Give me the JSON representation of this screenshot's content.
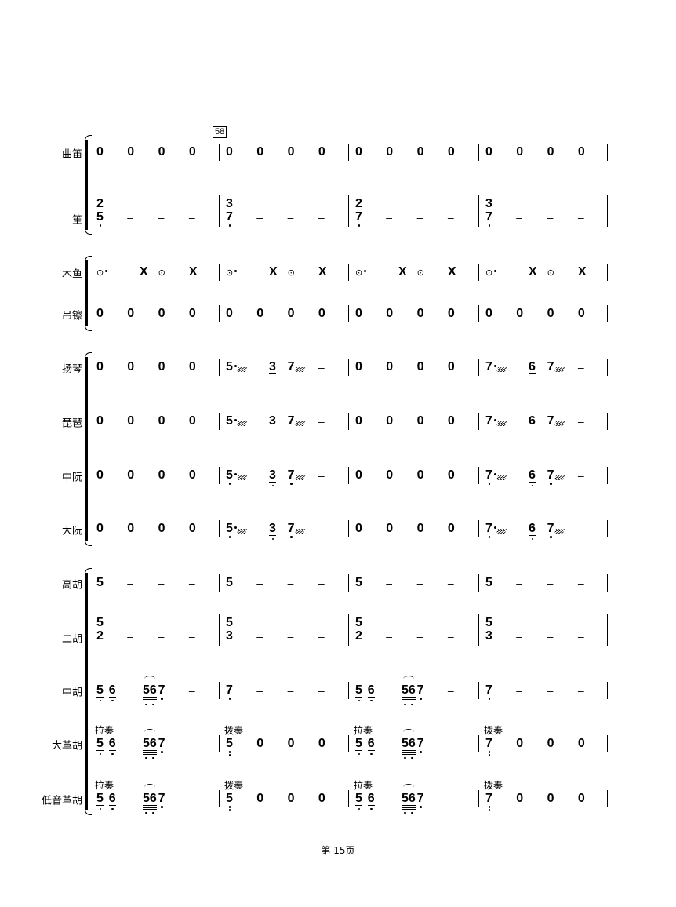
{
  "rehearsal_mark": "58",
  "footer": "第 15页",
  "instruments": [
    {
      "name": "曲笛",
      "measures": [
        [
          {
            "n": "0",
            "b": 0
          },
          {
            "n": "0",
            "b": 1
          },
          {
            "n": "0",
            "b": 2
          },
          {
            "n": "0",
            "b": 3
          }
        ],
        [
          {
            "n": "0",
            "b": 0
          },
          {
            "n": "0",
            "b": 1
          },
          {
            "n": "0",
            "b": 2
          },
          {
            "n": "0",
            "b": 3
          }
        ],
        [
          {
            "n": "0",
            "b": 0
          },
          {
            "n": "0",
            "b": 1
          },
          {
            "n": "0",
            "b": 2
          },
          {
            "n": "0",
            "b": 3
          }
        ],
        [
          {
            "n": "0",
            "b": 0
          },
          {
            "n": "0",
            "b": 1
          },
          {
            "n": "0",
            "b": 2
          },
          {
            "n": "0",
            "b": 3
          }
        ]
      ]
    },
    {
      "name": "笙",
      "measures": [
        [
          {
            "n": "5",
            "top": "2",
            "low": 1,
            "b": 0
          },
          {
            "n": "–",
            "b": 1
          },
          {
            "n": "–",
            "b": 2
          },
          {
            "n": "–",
            "b": 3
          }
        ],
        [
          {
            "n": "7",
            "top": "3",
            "low": 1,
            "b": 0
          },
          {
            "n": "–",
            "b": 1
          },
          {
            "n": "–",
            "b": 2
          },
          {
            "n": "–",
            "b": 3
          }
        ],
        [
          {
            "n": "7",
            "top": "2",
            "low": 1,
            "b": 0
          },
          {
            "n": "–",
            "b": 1
          },
          {
            "n": "–",
            "b": 2
          },
          {
            "n": "–",
            "b": 3
          }
        ],
        [
          {
            "n": "7",
            "top": "3",
            "low": 1,
            "b": 0
          },
          {
            "n": "–",
            "b": 1
          },
          {
            "n": "–",
            "b": 2
          },
          {
            "n": "–",
            "b": 3
          }
        ]
      ]
    },
    {
      "name": "木鱼",
      "measures": [
        [
          {
            "n": "⊙",
            "sym": true,
            "aug": true,
            "b": 0
          },
          {
            "n": "X",
            "ul": 1,
            "b": 1.4
          },
          {
            "n": "⊙",
            "sym": true,
            "b": 2
          },
          {
            "n": "X",
            "b": 3
          }
        ],
        [
          {
            "n": "⊙",
            "sym": true,
            "aug": true,
            "b": 0
          },
          {
            "n": "X",
            "ul": 1,
            "b": 1.4
          },
          {
            "n": "⊙",
            "sym": true,
            "b": 2
          },
          {
            "n": "X",
            "b": 3
          }
        ],
        [
          {
            "n": "⊙",
            "sym": true,
            "aug": true,
            "b": 0
          },
          {
            "n": "X",
            "ul": 1,
            "b": 1.4
          },
          {
            "n": "⊙",
            "sym": true,
            "b": 2
          },
          {
            "n": "X",
            "b": 3
          }
        ],
        [
          {
            "n": "⊙",
            "sym": true,
            "aug": true,
            "b": 0
          },
          {
            "n": "X",
            "ul": 1,
            "b": 1.4
          },
          {
            "n": "⊙",
            "sym": true,
            "b": 2
          },
          {
            "n": "X",
            "b": 3
          }
        ]
      ]
    },
    {
      "name": "吊镲",
      "measures": [
        [
          {
            "n": "0",
            "b": 0
          },
          {
            "n": "0",
            "b": 1
          },
          {
            "n": "0",
            "b": 2
          },
          {
            "n": "0",
            "b": 3
          }
        ],
        [
          {
            "n": "0",
            "b": 0
          },
          {
            "n": "0",
            "b": 1
          },
          {
            "n": "0",
            "b": 2
          },
          {
            "n": "0",
            "b": 3
          }
        ],
        [
          {
            "n": "0",
            "b": 0
          },
          {
            "n": "0",
            "b": 1
          },
          {
            "n": "0",
            "b": 2
          },
          {
            "n": "0",
            "b": 3
          }
        ],
        [
          {
            "n": "0",
            "b": 0
          },
          {
            "n": "0",
            "b": 1
          },
          {
            "n": "0",
            "b": 2
          },
          {
            "n": "0",
            "b": 3
          }
        ]
      ]
    },
    {
      "name": "扬琴",
      "measures": [
        [
          {
            "n": "0",
            "b": 0
          },
          {
            "n": "0",
            "b": 1
          },
          {
            "n": "0",
            "b": 2
          },
          {
            "n": "0",
            "b": 3
          }
        ],
        [
          {
            "n": "5",
            "aug": true,
            "trem": true,
            "b": 0
          },
          {
            "n": "3",
            "ul": 1,
            "b": 1.4
          },
          {
            "n": "7",
            "trem": true,
            "b": 2
          },
          {
            "n": "–",
            "b": 3
          }
        ],
        [
          {
            "n": "0",
            "b": 0
          },
          {
            "n": "0",
            "b": 1
          },
          {
            "n": "0",
            "b": 2
          },
          {
            "n": "0",
            "b": 3
          }
        ],
        [
          {
            "n": "7",
            "aug": true,
            "trem": true,
            "b": 0
          },
          {
            "n": "6",
            "ul": 1,
            "b": 1.4
          },
          {
            "n": "7",
            "trem": true,
            "b": 2
          },
          {
            "n": "–",
            "b": 3
          }
        ]
      ]
    },
    {
      "name": "琵琶",
      "measures": [
        [
          {
            "n": "0",
            "b": 0
          },
          {
            "n": "0",
            "b": 1
          },
          {
            "n": "0",
            "b": 2
          },
          {
            "n": "0",
            "b": 3
          }
        ],
        [
          {
            "n": "5",
            "aug": true,
            "trem": true,
            "b": 0
          },
          {
            "n": "3",
            "ul": 1,
            "b": 1.4
          },
          {
            "n": "7",
            "trem": true,
            "b": 2
          },
          {
            "n": "–",
            "b": 3
          }
        ],
        [
          {
            "n": "0",
            "b": 0
          },
          {
            "n": "0",
            "b": 1
          },
          {
            "n": "0",
            "b": 2
          },
          {
            "n": "0",
            "b": 3
          }
        ],
        [
          {
            "n": "7",
            "aug": true,
            "trem": true,
            "b": 0
          },
          {
            "n": "6",
            "ul": 1,
            "b": 1.4
          },
          {
            "n": "7",
            "trem": true,
            "b": 2
          },
          {
            "n": "–",
            "b": 3
          }
        ]
      ]
    },
    {
      "name": "中阮",
      "measures": [
        [
          {
            "n": "0",
            "b": 0
          },
          {
            "n": "0",
            "b": 1
          },
          {
            "n": "0",
            "b": 2
          },
          {
            "n": "0",
            "b": 3
          }
        ],
        [
          {
            "n": "5",
            "low": 1,
            "aug": true,
            "trem": true,
            "b": 0
          },
          {
            "n": "3",
            "ul": 1,
            "low": 1,
            "b": 1.4
          },
          {
            "n": "7",
            "low": 1,
            "trem": true,
            "b": 2
          },
          {
            "n": "–",
            "b": 3
          }
        ],
        [
          {
            "n": "0",
            "b": 0
          },
          {
            "n": "0",
            "b": 1
          },
          {
            "n": "0",
            "b": 2
          },
          {
            "n": "0",
            "b": 3
          }
        ],
        [
          {
            "n": "7",
            "low": 1,
            "aug": true,
            "trem": true,
            "b": 0
          },
          {
            "n": "6",
            "ul": 1,
            "low": 1,
            "b": 1.4
          },
          {
            "n": "7",
            "low": 1,
            "trem": true,
            "b": 2
          },
          {
            "n": "–",
            "b": 3
          }
        ]
      ]
    },
    {
      "name": "大阮",
      "measures": [
        [
          {
            "n": "0",
            "b": 0
          },
          {
            "n": "0",
            "b": 1
          },
          {
            "n": "0",
            "b": 2
          },
          {
            "n": "0",
            "b": 3
          }
        ],
        [
          {
            "n": "5",
            "low": 1,
            "aug": true,
            "trem": true,
            "b": 0
          },
          {
            "n": "3",
            "ul": 1,
            "low": 1,
            "b": 1.4
          },
          {
            "n": "7",
            "low": 1,
            "trem": true,
            "b": 2
          },
          {
            "n": "–",
            "b": 3
          }
        ],
        [
          {
            "n": "0",
            "b": 0
          },
          {
            "n": "0",
            "b": 1
          },
          {
            "n": "0",
            "b": 2
          },
          {
            "n": "0",
            "b": 3
          }
        ],
        [
          {
            "n": "7",
            "low": 1,
            "aug": true,
            "trem": true,
            "b": 0
          },
          {
            "n": "6",
            "ul": 1,
            "low": 1,
            "b": 1.4
          },
          {
            "n": "7",
            "low": 1,
            "trem": true,
            "b": 2
          },
          {
            "n": "–",
            "b": 3
          }
        ]
      ]
    },
    {
      "name": "高胡",
      "measures": [
        [
          {
            "n": "5",
            "b": 0
          },
          {
            "n": "–",
            "b": 1
          },
          {
            "n": "–",
            "b": 2
          },
          {
            "n": "–",
            "b": 3
          }
        ],
        [
          {
            "n": "5",
            "b": 0
          },
          {
            "n": "–",
            "b": 1
          },
          {
            "n": "–",
            "b": 2
          },
          {
            "n": "–",
            "b": 3
          }
        ],
        [
          {
            "n": "5",
            "b": 0
          },
          {
            "n": "–",
            "b": 1
          },
          {
            "n": "–",
            "b": 2
          },
          {
            "n": "–",
            "b": 3
          }
        ],
        [
          {
            "n": "5",
            "b": 0
          },
          {
            "n": "–",
            "b": 1
          },
          {
            "n": "–",
            "b": 2
          },
          {
            "n": "–",
            "b": 3
          }
        ]
      ]
    },
    {
      "name": "二胡",
      "measures": [
        [
          {
            "n": "2",
            "top": "5",
            "b": 0
          },
          {
            "n": "–",
            "b": 1
          },
          {
            "n": "–",
            "b": 2
          },
          {
            "n": "–",
            "b": 3
          }
        ],
        [
          {
            "n": "3",
            "top": "5",
            "b": 0
          },
          {
            "n": "–",
            "b": 1
          },
          {
            "n": "–",
            "b": 2
          },
          {
            "n": "–",
            "b": 3
          }
        ],
        [
          {
            "n": "2",
            "top": "5",
            "b": 0
          },
          {
            "n": "–",
            "b": 1
          },
          {
            "n": "–",
            "b": 2
          },
          {
            "n": "–",
            "b": 3
          }
        ],
        [
          {
            "n": "3",
            "top": "5",
            "b": 0
          },
          {
            "n": "–",
            "b": 1
          },
          {
            "n": "–",
            "b": 2
          },
          {
            "n": "–",
            "b": 3
          }
        ]
      ]
    },
    {
      "name": "中胡",
      "measures": [
        [
          {
            "n": "5",
            "ul": 1,
            "low": 1,
            "b": 0
          },
          {
            "n": "6",
            "ul": 1,
            "low": 1,
            "b": 0.4
          },
          {
            "n": "56",
            "ul": 3,
            "low": 1,
            "arc": true,
            "b": 1.5
          },
          {
            "n": "7",
            "low": 1,
            "b": 2
          },
          {
            "n": "–",
            "b": 3
          }
        ],
        [
          {
            "n": "7",
            "low": 1,
            "b": 0
          },
          {
            "n": "–",
            "b": 1
          },
          {
            "n": "–",
            "b": 2
          },
          {
            "n": "–",
            "b": 3
          }
        ],
        [
          {
            "n": "5",
            "ul": 1,
            "low": 1,
            "b": 0
          },
          {
            "n": "6",
            "ul": 1,
            "low": 1,
            "b": 0.4
          },
          {
            "n": "56",
            "ul": 3,
            "low": 1,
            "arc": true,
            "b": 1.5
          },
          {
            "n": "7",
            "low": 1,
            "b": 2
          },
          {
            "n": "–",
            "b": 3
          }
        ],
        [
          {
            "n": "7",
            "low": 1,
            "b": 0
          },
          {
            "n": "–",
            "b": 1
          },
          {
            "n": "–",
            "b": 2
          },
          {
            "n": "–",
            "b": 3
          }
        ]
      ]
    },
    {
      "name": "大革胡",
      "measures": [
        [
          {
            "label": "拉奏",
            "n": "5",
            "ul": 1,
            "low": 1,
            "b": 0
          },
          {
            "n": "6",
            "ul": 1,
            "low": 1,
            "b": 0.4
          },
          {
            "n": "56",
            "ul": 3,
            "low": 1,
            "arc": true,
            "b": 1.5
          },
          {
            "n": "7",
            "low": 1,
            "b": 2
          },
          {
            "n": "–",
            "b": 3
          }
        ],
        [
          {
            "label": "拨奏",
            "n": "5",
            "low": 2,
            "b": 0
          },
          {
            "n": "0",
            "b": 1
          },
          {
            "n": "0",
            "b": 2
          },
          {
            "n": "0",
            "b": 3
          }
        ],
        [
          {
            "label": "拉奏",
            "n": "5",
            "ul": 1,
            "low": 1,
            "b": 0
          },
          {
            "n": "6",
            "ul": 1,
            "low": 1,
            "b": 0.4
          },
          {
            "n": "56",
            "ul": 3,
            "low": 1,
            "arc": true,
            "b": 1.5
          },
          {
            "n": "7",
            "low": 1,
            "b": 2
          },
          {
            "n": "–",
            "b": 3
          }
        ],
        [
          {
            "label": "拨奏",
            "n": "7",
            "low": 2,
            "b": 0
          },
          {
            "n": "0",
            "b": 1
          },
          {
            "n": "0",
            "b": 2
          },
          {
            "n": "0",
            "b": 3
          }
        ]
      ]
    },
    {
      "name": "低音革胡",
      "measures": [
        [
          {
            "label": "拉奏",
            "n": "5",
            "ul": 1,
            "low": 1,
            "b": 0
          },
          {
            "n": "6",
            "ul": 1,
            "low": 1,
            "b": 0.4
          },
          {
            "n": "56",
            "ul": 3,
            "low": 1,
            "arc": true,
            "b": 1.5
          },
          {
            "n": "7",
            "low": 1,
            "b": 2
          },
          {
            "n": "–",
            "b": 3
          }
        ],
        [
          {
            "label": "拨奏",
            "n": "5",
            "low": 2,
            "b": 0
          },
          {
            "n": "0",
            "b": 1
          },
          {
            "n": "0",
            "b": 2
          },
          {
            "n": "0",
            "b": 3
          }
        ],
        [
          {
            "label": "拉奏",
            "n": "5",
            "ul": 1,
            "low": 1,
            "b": 0
          },
          {
            "n": "6",
            "ul": 1,
            "low": 1,
            "b": 0.4
          },
          {
            "n": "56",
            "ul": 3,
            "low": 1,
            "arc": true,
            "b": 1.5
          },
          {
            "n": "7",
            "low": 1,
            "b": 2
          },
          {
            "n": "–",
            "b": 3
          }
        ],
        [
          {
            "label": "拨奏",
            "n": "7",
            "low": 2,
            "b": 0
          },
          {
            "n": "0",
            "b": 1
          },
          {
            "n": "0",
            "b": 2
          },
          {
            "n": "0",
            "b": 3
          }
        ]
      ]
    }
  ]
}
